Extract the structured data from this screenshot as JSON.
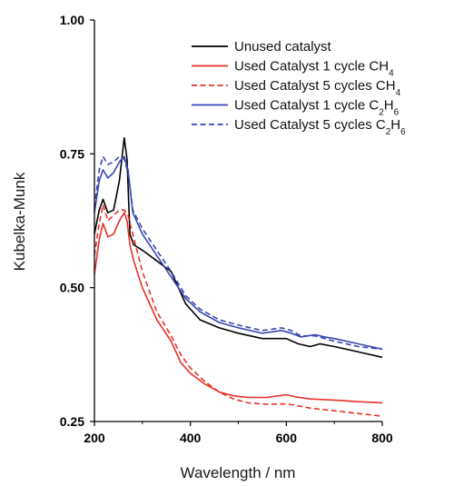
{
  "chart_data": {
    "type": "line",
    "xlabel": "Wavelength / nm",
    "ylabel": "Kubelka-Munk",
    "xlim": [
      200,
      800
    ],
    "ylim": [
      0.25,
      1.0
    ],
    "x_ticks": [
      200,
      400,
      600,
      800
    ],
    "y_ticks": [
      0.25,
      0.5,
      0.75,
      1.0
    ],
    "x_tick_labels": [
      "200",
      "400",
      "600",
      "800"
    ],
    "y_tick_labels": [
      "0.25",
      "0.50",
      "0.75",
      "1.00"
    ],
    "grid": false,
    "legend_position": "top-right",
    "series": [
      {
        "name": "Unused catalyst",
        "name_parts": [
          {
            "t": "Unused catalyst"
          }
        ],
        "color": "#000000",
        "dash": "solid",
        "x": [
          200,
          210,
          218,
          228,
          240,
          252,
          262,
          268,
          274,
          282,
          300,
          330,
          360,
          390,
          420,
          460,
          500,
          550,
          575,
          600,
          625,
          650,
          670,
          700,
          750,
          800
        ],
        "y": [
          0.6,
          0.645,
          0.665,
          0.64,
          0.645,
          0.7,
          0.78,
          0.74,
          0.6,
          0.58,
          0.57,
          0.55,
          0.53,
          0.47,
          0.44,
          0.425,
          0.415,
          0.405,
          0.405,
          0.405,
          0.395,
          0.39,
          0.395,
          0.39,
          0.38,
          0.37
        ]
      },
      {
        "name": "Used Catalyst 1 cycle CH4",
        "name_parts": [
          {
            "t": "Used Catalyst 1 cycle CH"
          },
          {
            "t": "4",
            "sub": true
          }
        ],
        "color": "#e8302a",
        "dash": "solid",
        "x": [
          200,
          210,
          218,
          228,
          240,
          252,
          262,
          268,
          274,
          282,
          300,
          330,
          360,
          380,
          400,
          430,
          460,
          490,
          520,
          560,
          600,
          620,
          650,
          700,
          750,
          800
        ],
        "y": [
          0.525,
          0.59,
          0.62,
          0.595,
          0.6,
          0.625,
          0.64,
          0.625,
          0.58,
          0.55,
          0.5,
          0.44,
          0.4,
          0.36,
          0.34,
          0.32,
          0.305,
          0.298,
          0.295,
          0.295,
          0.3,
          0.296,
          0.292,
          0.29,
          0.287,
          0.285
        ]
      },
      {
        "name": "Used Catalyst 5 cycles CH4",
        "name_parts": [
          {
            "t": "Used Catalyst 5 cycles CH"
          },
          {
            "t": "4",
            "sub": true
          }
        ],
        "color": "#e8302a",
        "dash": "dashed",
        "x": [
          200,
          210,
          218,
          228,
          240,
          252,
          262,
          270,
          280,
          300,
          330,
          360,
          380,
          400,
          430,
          460,
          490,
          520,
          560,
          600,
          620,
          650,
          700,
          750,
          800
        ],
        "y": [
          0.56,
          0.62,
          0.655,
          0.625,
          0.635,
          0.645,
          0.645,
          0.635,
          0.6,
          0.53,
          0.455,
          0.41,
          0.375,
          0.35,
          0.325,
          0.305,
          0.292,
          0.285,
          0.282,
          0.283,
          0.28,
          0.275,
          0.27,
          0.265,
          0.26
        ]
      },
      {
        "name": "Used Catalyst 1 cycle C2H6",
        "name_parts": [
          {
            "t": "Used Catalyst 1 cycle C"
          },
          {
            "t": "2",
            "sub": true
          },
          {
            "t": "H"
          },
          {
            "t": "6",
            "sub": true
          }
        ],
        "color": "#3a46b0",
        "dash": "solid",
        "x": [
          200,
          210,
          218,
          228,
          240,
          252,
          262,
          270,
          280,
          300,
          330,
          360,
          390,
          420,
          460,
          500,
          550,
          590,
          610,
          630,
          660,
          680,
          700,
          750,
          800
        ],
        "y": [
          0.64,
          0.7,
          0.72,
          0.705,
          0.715,
          0.735,
          0.745,
          0.72,
          0.64,
          0.6,
          0.56,
          0.52,
          0.48,
          0.455,
          0.435,
          0.425,
          0.415,
          0.42,
          0.415,
          0.408,
          0.412,
          0.408,
          0.405,
          0.395,
          0.385
        ]
      },
      {
        "name": "Used Catalyst 5 cycles C2H6",
        "name_parts": [
          {
            "t": "Used Catalyst 5 cycles C"
          },
          {
            "t": "2",
            "sub": true
          },
          {
            "t": "H"
          },
          {
            "t": "6",
            "sub": true
          }
        ],
        "color": "#3a46b0",
        "dash": "dashed",
        "x": [
          200,
          210,
          218,
          228,
          240,
          252,
          262,
          270,
          280,
          300,
          330,
          360,
          390,
          420,
          460,
          500,
          550,
          590,
          610,
          630,
          660,
          680,
          700,
          750,
          800
        ],
        "y": [
          0.65,
          0.72,
          0.745,
          0.73,
          0.735,
          0.745,
          0.74,
          0.715,
          0.645,
          0.61,
          0.57,
          0.53,
          0.485,
          0.46,
          0.44,
          0.43,
          0.42,
          0.425,
          0.42,
          0.41,
          0.41,
          0.405,
          0.4,
          0.39,
          0.385
        ]
      }
    ]
  }
}
